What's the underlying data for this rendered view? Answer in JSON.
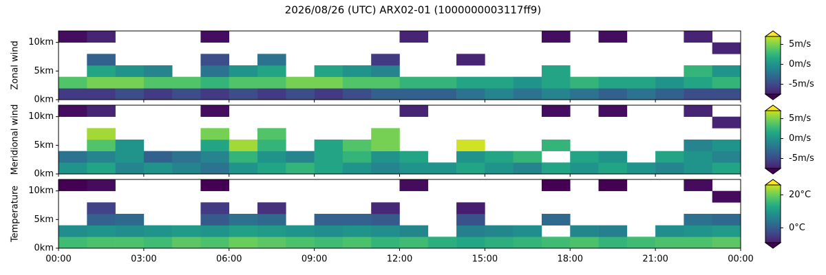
{
  "title": "2026/08/26 (UTC) ARX02-01 (1000000003117ff9)",
  "chart_data": [
    {
      "type": "heatmap",
      "ylabel": "Zonal wind",
      "x": [
        0.5,
        1.5,
        2.5,
        3.5,
        4.5,
        5.5,
        6.5,
        7.5,
        8.5,
        9.5,
        10.5,
        11.5,
        12.5,
        13.5,
        14.5,
        15.5,
        16.5,
        17.5,
        18.5,
        19.5,
        20.5,
        21.5,
        22.5,
        23.5
      ],
      "y": [
        1,
        3,
        5,
        7,
        9,
        11
      ],
      "values": [
        [
          -5,
          -5,
          -4,
          -5,
          -4,
          -5,
          -4,
          -5,
          -4,
          -5,
          -4,
          -3,
          -3,
          -3,
          -2,
          -1,
          -2,
          -1,
          -2,
          -3,
          -2,
          -3,
          -4,
          -4
        ],
        [
          3,
          4,
          4,
          3,
          3,
          2,
          3,
          3,
          4,
          4,
          3,
          3,
          2,
          2,
          1,
          1,
          0,
          1,
          2,
          1,
          1,
          0,
          1,
          2
        ],
        [
          null,
          1,
          0,
          -1,
          null,
          -2,
          0,
          1,
          null,
          1,
          0,
          -1,
          null,
          null,
          null,
          null,
          null,
          1,
          null,
          null,
          null,
          null,
          2,
          0
        ],
        [
          null,
          -3,
          null,
          null,
          null,
          -4,
          null,
          -2,
          null,
          null,
          null,
          -5,
          null,
          null,
          -6,
          null,
          null,
          null,
          null,
          null,
          null,
          null,
          null,
          null
        ],
        [
          null,
          null,
          null,
          null,
          null,
          null,
          null,
          null,
          null,
          null,
          null,
          null,
          null,
          null,
          null,
          null,
          null,
          null,
          null,
          null,
          null,
          null,
          null,
          -6
        ],
        [
          -7,
          -6,
          null,
          null,
          null,
          -7,
          null,
          null,
          null,
          null,
          null,
          null,
          -6,
          null,
          null,
          null,
          null,
          -7,
          null,
          -7,
          null,
          null,
          -6,
          null
        ]
      ],
      "xlim": [
        0,
        24
      ],
      "xticks": [
        {
          "value": 0,
          "label": "00:00"
        },
        {
          "value": 3,
          "label": "03:00"
        },
        {
          "value": 6,
          "label": "06:00"
        },
        {
          "value": 9,
          "label": "09:00"
        },
        {
          "value": 12,
          "label": "12:00"
        },
        {
          "value": 15,
          "label": "15:00"
        },
        {
          "value": 18,
          "label": "18:00"
        },
        {
          "value": 21,
          "label": "21:00"
        },
        {
          "value": 24,
          "label": "00:00"
        }
      ],
      "ylim": [
        0,
        12
      ],
      "yticks": [
        {
          "value": 0,
          "label": "0km"
        },
        {
          "value": 5,
          "label": "5km"
        },
        {
          "value": 10,
          "label": "10km"
        }
      ],
      "clim": [
        -7.5,
        7
      ],
      "cticks": [
        {
          "value": 5,
          "label": "5m/s"
        },
        {
          "value": 0,
          "label": "0m/s"
        },
        {
          "value": -5,
          "label": "-5m/s"
        }
      ],
      "colormap": "viridis"
    },
    {
      "type": "heatmap",
      "ylabel": "Meridional wind",
      "x": [
        0.5,
        1.5,
        2.5,
        3.5,
        4.5,
        5.5,
        6.5,
        7.5,
        8.5,
        9.5,
        10.5,
        11.5,
        12.5,
        13.5,
        14.5,
        15.5,
        16.5,
        17.5,
        18.5,
        19.5,
        20.5,
        21.5,
        22.5,
        23.5
      ],
      "y": [
        1,
        3,
        5,
        7,
        9,
        11
      ],
      "values": [
        [
          0,
          1,
          -1,
          0,
          -1,
          -2,
          0,
          1,
          2,
          1,
          0,
          -1,
          0,
          0,
          1,
          0,
          -1,
          1,
          0,
          1,
          0,
          -1,
          0,
          1
        ],
        [
          -2,
          -1,
          0,
          -3,
          -2,
          -1,
          2,
          0,
          -1,
          1,
          2,
          0,
          1,
          null,
          0,
          1,
          2,
          null,
          1,
          0,
          null,
          1,
          0,
          -1
        ],
        [
          null,
          3,
          0,
          null,
          null,
          1,
          5,
          2,
          null,
          1,
          3,
          4,
          null,
          null,
          6,
          null,
          null,
          2,
          null,
          null,
          null,
          null,
          -1,
          0
        ],
        [
          null,
          5,
          null,
          null,
          null,
          4,
          null,
          3,
          null,
          null,
          null,
          4,
          null,
          null,
          null,
          null,
          null,
          null,
          null,
          null,
          null,
          null,
          null,
          null
        ],
        [
          null,
          null,
          null,
          null,
          null,
          null,
          null,
          null,
          null,
          null,
          null,
          null,
          null,
          null,
          null,
          null,
          null,
          null,
          null,
          null,
          null,
          null,
          null,
          -6
        ],
        [
          -7,
          -6,
          null,
          null,
          null,
          -7,
          null,
          null,
          null,
          null,
          null,
          null,
          -6,
          null,
          null,
          null,
          null,
          -7,
          null,
          -7,
          null,
          null,
          -6,
          null
        ]
      ],
      "xlim": [
        0,
        24
      ],
      "xticks": [
        {
          "value": 0,
          "label": "00:00"
        },
        {
          "value": 3,
          "label": "03:00"
        },
        {
          "value": 6,
          "label": "06:00"
        },
        {
          "value": 9,
          "label": "09:00"
        },
        {
          "value": 12,
          "label": "12:00"
        },
        {
          "value": 15,
          "label": "15:00"
        },
        {
          "value": 18,
          "label": "18:00"
        },
        {
          "value": 21,
          "label": "21:00"
        },
        {
          "value": 24,
          "label": "00:00"
        }
      ],
      "ylim": [
        0,
        12
      ],
      "yticks": [
        {
          "value": 0,
          "label": "0km"
        },
        {
          "value": 5,
          "label": "5km"
        },
        {
          "value": 10,
          "label": "10km"
        }
      ],
      "clim": [
        -7.5,
        7
      ],
      "cticks": [
        {
          "value": 5,
          "label": "5m/s"
        },
        {
          "value": 0,
          "label": "0m/s"
        },
        {
          "value": -5,
          "label": "-5m/s"
        }
      ],
      "colormap": "viridis"
    },
    {
      "type": "heatmap",
      "ylabel": "Temperature",
      "x": [
        0.5,
        1.5,
        2.5,
        3.5,
        4.5,
        5.5,
        6.5,
        7.5,
        8.5,
        9.5,
        10.5,
        11.5,
        12.5,
        13.5,
        14.5,
        15.5,
        16.5,
        17.5,
        18.5,
        19.5,
        20.5,
        21.5,
        22.5,
        23.5
      ],
      "y": [
        1,
        3,
        5,
        7,
        9,
        11
      ],
      "values": [
        [
          15,
          16,
          16,
          15,
          17,
          16,
          18,
          17,
          16,
          15,
          16,
          14,
          15,
          13,
          12,
          13,
          14,
          15,
          16,
          14,
          15,
          16,
          16,
          17
        ],
        [
          8,
          9,
          8,
          9,
          10,
          9,
          11,
          10,
          9,
          8,
          9,
          8,
          7,
          null,
          6,
          7,
          8,
          null,
          7,
          6,
          null,
          8,
          9,
          10
        ],
        [
          null,
          2,
          3,
          null,
          null,
          1,
          4,
          3,
          null,
          2,
          2,
          1,
          null,
          null,
          0,
          null,
          null,
          3,
          null,
          null,
          null,
          null,
          4,
          3
        ],
        [
          null,
          -2,
          null,
          null,
          null,
          -3,
          null,
          -4,
          null,
          null,
          null,
          -5,
          null,
          null,
          -6,
          null,
          null,
          null,
          null,
          null,
          null,
          null,
          null,
          null
        ],
        [
          null,
          null,
          null,
          null,
          null,
          null,
          null,
          null,
          null,
          null,
          null,
          null,
          null,
          null,
          null,
          null,
          null,
          null,
          null,
          null,
          null,
          null,
          null,
          -8
        ],
        [
          -9,
          -8,
          null,
          null,
          null,
          -9,
          null,
          null,
          null,
          null,
          null,
          null,
          -8,
          null,
          null,
          null,
          null,
          -9,
          null,
          -9,
          null,
          null,
          -8,
          null
        ]
      ],
      "xlim": [
        0,
        24
      ],
      "xticks": [
        {
          "value": 0,
          "label": "00:00"
        },
        {
          "value": 3,
          "label": "03:00"
        },
        {
          "value": 6,
          "label": "06:00"
        },
        {
          "value": 9,
          "label": "09:00"
        },
        {
          "value": 12,
          "label": "12:00"
        },
        {
          "value": 15,
          "label": "15:00"
        },
        {
          "value": 18,
          "label": "18:00"
        },
        {
          "value": 21,
          "label": "21:00"
        },
        {
          "value": 24,
          "label": "00:00"
        }
      ],
      "ylim": [
        0,
        12
      ],
      "yticks": [
        {
          "value": 0,
          "label": "0km"
        },
        {
          "value": 5,
          "label": "5km"
        },
        {
          "value": 10,
          "label": "10km"
        }
      ],
      "clim": [
        -9,
        26
      ],
      "cticks": [
        {
          "value": 20,
          "label": "20°C"
        },
        {
          "value": 0,
          "label": "0°C"
        }
      ],
      "colormap": "viridis"
    }
  ]
}
